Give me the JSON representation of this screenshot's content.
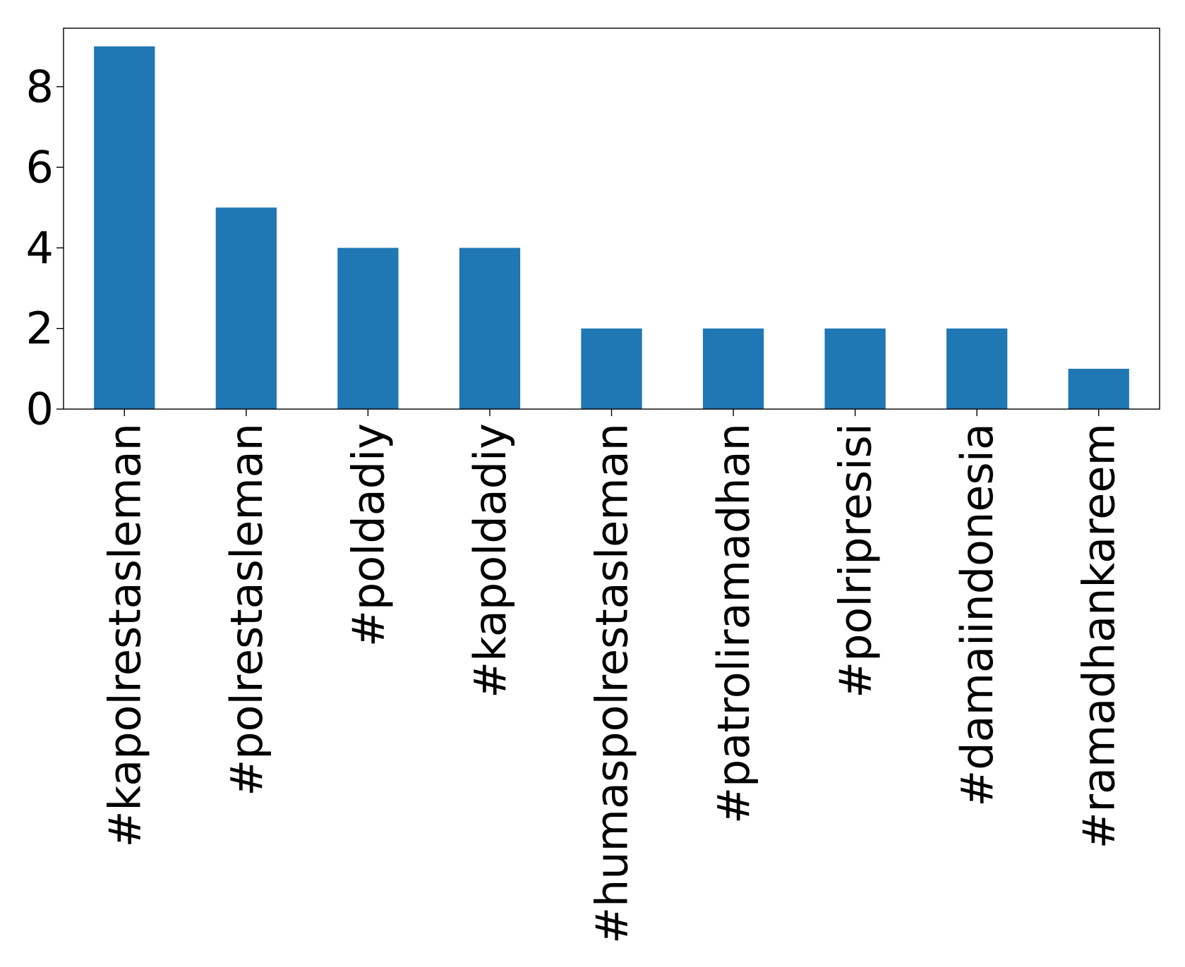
{
  "chart_data": {
    "type": "bar",
    "title": "",
    "xlabel": "",
    "ylabel": "",
    "categories": [
      "#kapolrestasleman",
      "#polrestasleman",
      "#poldadiy",
      "#kapoldadiy",
      "#humaspolrestasleman",
      "#patroliramadhan",
      "#polripresisi",
      "#damaiindonesia",
      "#ramadhankareem"
    ],
    "values": [
      9,
      5,
      4,
      4,
      2,
      2,
      2,
      2,
      1
    ],
    "ylim": [
      0,
      9.45
    ],
    "yticks": [
      "0",
      "2",
      "4",
      "6",
      "8"
    ],
    "grid": false,
    "legend": "none",
    "bar_color": "#1f77b4",
    "axis_color": "#000000"
  }
}
